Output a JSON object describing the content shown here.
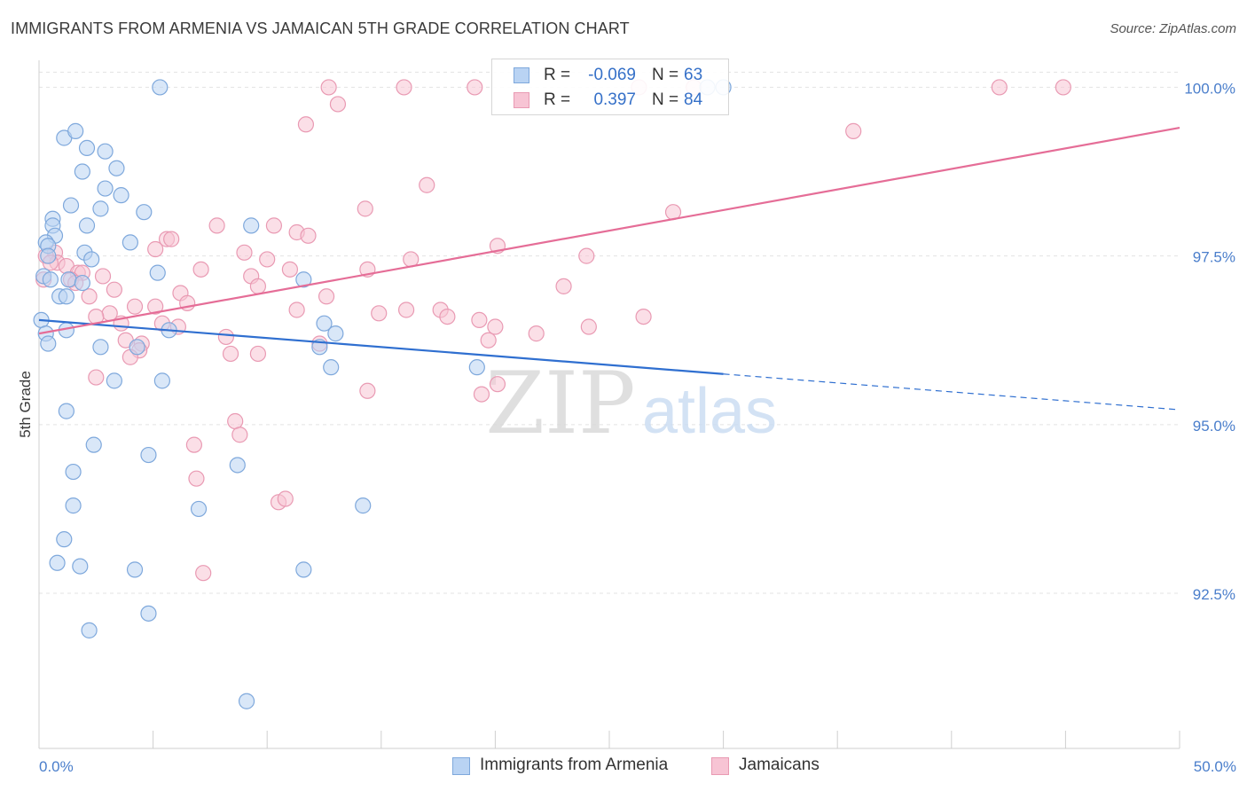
{
  "header": {
    "title": "IMMIGRANTS FROM ARMENIA VS JAMAICAN 5TH GRADE CORRELATION CHART",
    "source": "Source: ZipAtlas.com"
  },
  "watermark": {
    "zip": "ZIP",
    "atlas": "atlas"
  },
  "legend": {
    "rows": [
      {
        "r_label": "R =",
        "r_value": "-0.069",
        "n_label": "N =",
        "n_value": "63"
      },
      {
        "r_label": "R =",
        "r_value": "0.397",
        "n_label": "N =",
        "n_value": "84"
      }
    ]
  },
  "bottom_legend": {
    "series1": "Immigrants from Armenia",
    "series2": "Jamaicans"
  },
  "colors": {
    "blue_fill": "#b9d3f3",
    "blue_stroke": "#7ea8dc",
    "blue_line": "#2f6fd0",
    "pink_fill": "#f7c4d4",
    "pink_stroke": "#e99ab3",
    "pink_line": "#e56d97",
    "tick_text": "#4a7ecb",
    "grid": "#e3e3e3"
  },
  "chart_data": {
    "type": "scatter",
    "title": "IMMIGRANTS FROM ARMENIA VS JAMAICAN 5TH GRADE CORRELATION CHART",
    "xlabel": "",
    "ylabel": "5th Grade",
    "xlim": [
      0,
      50
    ],
    "ylim": [
      90.2,
      100.4
    ],
    "x_tick_labels": [
      "0.0%",
      "50.0%"
    ],
    "y_ticks": [
      92.5,
      95.0,
      97.5,
      100.0
    ],
    "y_tick_labels": [
      "92.5%",
      "95.0%",
      "97.5%",
      "100.0%"
    ],
    "grid": true,
    "legend_placement": "top-center",
    "series": [
      {
        "name": "Immigrants from Armenia",
        "r": -0.069,
        "n": 63,
        "trend": {
          "x_start": 0,
          "y_start": 96.55,
          "x_solid_end": 30,
          "y_solid_end": 95.75,
          "x_dash_end": 50,
          "y_dash_end": 95.22
        },
        "points": [
          [
            5.3,
            100.0
          ],
          [
            1.1,
            99.25
          ],
          [
            1.6,
            99.35
          ],
          [
            2.1,
            99.1
          ],
          [
            2.9,
            99.05
          ],
          [
            1.9,
            98.75
          ],
          [
            3.4,
            98.8
          ],
          [
            2.9,
            98.5
          ],
          [
            3.6,
            98.4
          ],
          [
            1.4,
            98.25
          ],
          [
            2.7,
            98.2
          ],
          [
            4.6,
            98.15
          ],
          [
            0.6,
            98.05
          ],
          [
            0.6,
            97.95
          ],
          [
            2.1,
            97.95
          ],
          [
            9.3,
            97.95
          ],
          [
            0.7,
            97.8
          ],
          [
            0.3,
            97.7
          ],
          [
            0.4,
            97.65
          ],
          [
            4.0,
            97.7
          ],
          [
            2.0,
            97.55
          ],
          [
            0.4,
            97.5
          ],
          [
            2.3,
            97.45
          ],
          [
            0.2,
            97.2
          ],
          [
            5.2,
            97.25
          ],
          [
            1.3,
            97.15
          ],
          [
            1.9,
            97.1
          ],
          [
            11.6,
            97.15
          ],
          [
            0.5,
            97.15
          ],
          [
            0.9,
            96.9
          ],
          [
            1.2,
            96.9
          ],
          [
            0.1,
            96.55
          ],
          [
            12.5,
            96.5
          ],
          [
            1.2,
            96.4
          ],
          [
            5.7,
            96.4
          ],
          [
            0.3,
            96.35
          ],
          [
            13.0,
            96.35
          ],
          [
            0.4,
            96.2
          ],
          [
            2.7,
            96.15
          ],
          [
            4.3,
            96.15
          ],
          [
            12.3,
            96.15
          ],
          [
            12.8,
            95.85
          ],
          [
            19.2,
            95.85
          ],
          [
            3.3,
            95.65
          ],
          [
            5.4,
            95.65
          ],
          [
            1.2,
            95.2
          ],
          [
            2.4,
            94.7
          ],
          [
            4.8,
            94.55
          ],
          [
            8.7,
            94.4
          ],
          [
            1.5,
            94.3
          ],
          [
            1.5,
            93.8
          ],
          [
            7.0,
            93.75
          ],
          [
            14.2,
            93.8
          ],
          [
            1.1,
            93.3
          ],
          [
            0.8,
            92.95
          ],
          [
            1.8,
            92.9
          ],
          [
            4.2,
            92.85
          ],
          [
            11.6,
            92.85
          ],
          [
            4.8,
            92.2
          ],
          [
            2.2,
            91.95
          ],
          [
            9.1,
            90.9
          ],
          [
            30.0,
            100.0
          ],
          [
            29.3,
            100.0
          ]
        ]
      },
      {
        "name": "Jamaicans",
        "r": 0.397,
        "n": 84,
        "trend": {
          "x_start": 0,
          "y_start": 96.35,
          "x_end": 50,
          "y_end": 99.4
        },
        "points": [
          [
            12.7,
            100.0
          ],
          [
            16.0,
            100.0
          ],
          [
            19.1,
            100.0
          ],
          [
            26.3,
            100.0
          ],
          [
            28.7,
            100.0
          ],
          [
            42.1,
            100.0
          ],
          [
            44.9,
            100.0
          ],
          [
            13.1,
            99.75
          ],
          [
            11.7,
            99.45
          ],
          [
            35.7,
            99.35
          ],
          [
            17.0,
            98.55
          ],
          [
            14.3,
            98.2
          ],
          [
            27.8,
            98.15
          ],
          [
            7.8,
            97.95
          ],
          [
            10.3,
            97.95
          ],
          [
            11.3,
            97.85
          ],
          [
            11.8,
            97.8
          ],
          [
            5.6,
            97.75
          ],
          [
            5.8,
            97.75
          ],
          [
            5.1,
            97.6
          ],
          [
            20.1,
            97.65
          ],
          [
            0.7,
            97.55
          ],
          [
            0.3,
            97.5
          ],
          [
            9.0,
            97.55
          ],
          [
            24.0,
            97.5
          ],
          [
            10.0,
            97.45
          ],
          [
            16.3,
            97.45
          ],
          [
            0.8,
            97.4
          ],
          [
            0.5,
            97.4
          ],
          [
            1.2,
            97.35
          ],
          [
            7.1,
            97.3
          ],
          [
            11.0,
            97.3
          ],
          [
            14.4,
            97.3
          ],
          [
            1.7,
            97.25
          ],
          [
            1.9,
            97.25
          ],
          [
            9.3,
            97.2
          ],
          [
            2.8,
            97.2
          ],
          [
            0.2,
            97.15
          ],
          [
            1.4,
            97.15
          ],
          [
            1.6,
            97.1
          ],
          [
            9.6,
            97.05
          ],
          [
            23.0,
            97.05
          ],
          [
            3.3,
            97.0
          ],
          [
            6.2,
            96.95
          ],
          [
            2.2,
            96.9
          ],
          [
            12.6,
            96.9
          ],
          [
            6.5,
            96.8
          ],
          [
            4.2,
            96.75
          ],
          [
            5.1,
            96.75
          ],
          [
            16.1,
            96.7
          ],
          [
            14.9,
            96.65
          ],
          [
            11.3,
            96.7
          ],
          [
            17.6,
            96.7
          ],
          [
            3.1,
            96.65
          ],
          [
            2.5,
            96.6
          ],
          [
            17.9,
            96.6
          ],
          [
            26.5,
            96.6
          ],
          [
            19.3,
            96.55
          ],
          [
            3.6,
            96.5
          ],
          [
            5.4,
            96.5
          ],
          [
            6.1,
            96.45
          ],
          [
            20.0,
            96.45
          ],
          [
            24.1,
            96.45
          ],
          [
            21.8,
            96.35
          ],
          [
            8.2,
            96.3
          ],
          [
            3.8,
            96.25
          ],
          [
            4.5,
            96.2
          ],
          [
            12.3,
            96.2
          ],
          [
            19.7,
            96.25
          ],
          [
            4.4,
            96.1
          ],
          [
            8.4,
            96.05
          ],
          [
            9.6,
            96.05
          ],
          [
            4.0,
            96.0
          ],
          [
            2.5,
            95.7
          ],
          [
            20.1,
            95.6
          ],
          [
            14.4,
            95.5
          ],
          [
            19.4,
            95.45
          ],
          [
            8.6,
            95.05
          ],
          [
            8.8,
            94.85
          ],
          [
            6.8,
            94.7
          ],
          [
            6.9,
            94.2
          ],
          [
            10.5,
            93.85
          ],
          [
            10.8,
            93.9
          ],
          [
            7.2,
            92.8
          ]
        ]
      }
    ]
  }
}
